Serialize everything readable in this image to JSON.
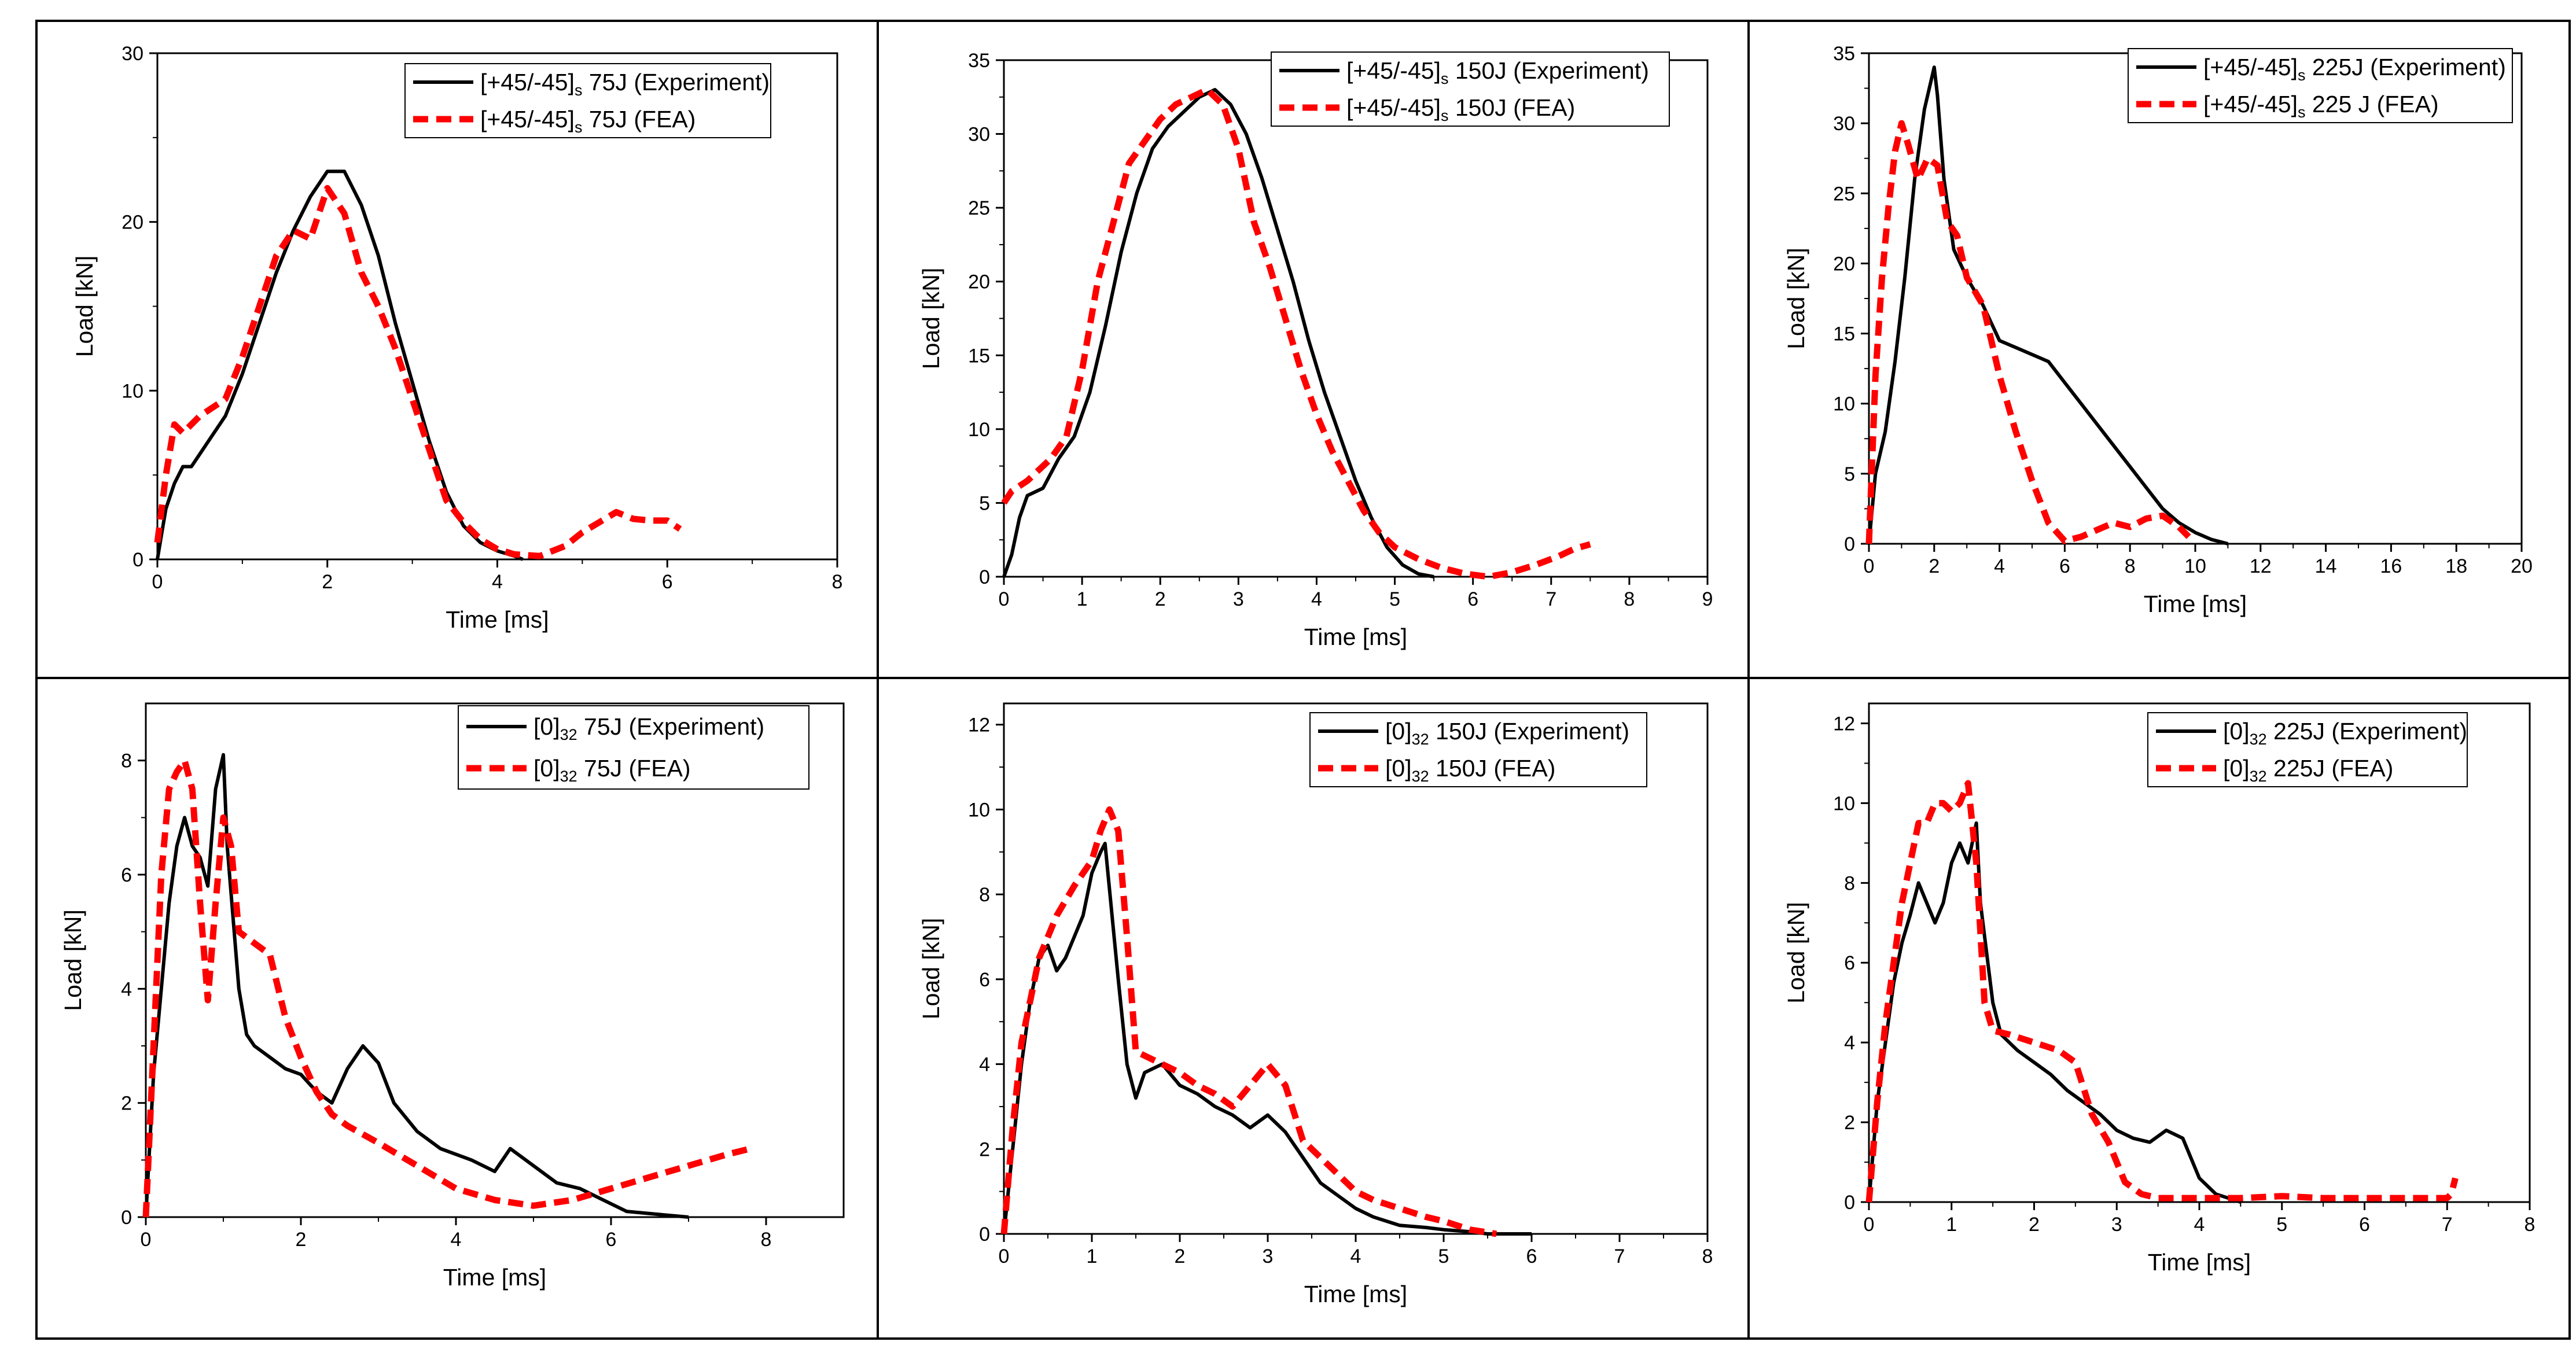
{
  "colors": {
    "experiment": "#000000",
    "fea": "#ff0000",
    "frame": "#000000",
    "background": "#ffffff"
  },
  "chart_data": [
    {
      "type": "line",
      "panel": "top-left",
      "xlabel": "Time [ms]",
      "ylabel": "Load [kN]",
      "xlim": [
        0,
        8
      ],
      "ylim": [
        0,
        30
      ],
      "xticks": [
        0,
        2,
        4,
        6,
        8
      ],
      "yticks": [
        0,
        10,
        20,
        30
      ],
      "legend_position": "top-right",
      "series": [
        {
          "name": "Experiment",
          "legend_main": "[+45/-45]",
          "legend_sub": "s",
          "legend_rest": " 75J (Experiment)",
          "style": "solid",
          "color": "#000000",
          "x": [
            0,
            0.05,
            0.1,
            0.2,
            0.3,
            0.4,
            0.6,
            0.8,
            1.0,
            1.2,
            1.4,
            1.6,
            1.8,
            2.0,
            2.2,
            2.4,
            2.6,
            2.8,
            3.0,
            3.2,
            3.4,
            3.6,
            3.8,
            4.0,
            4.2,
            4.3
          ],
          "y": [
            0,
            1.5,
            3,
            4.5,
            5.5,
            5.5,
            7,
            8.5,
            11,
            14,
            17,
            19.5,
            21.5,
            23,
            23,
            21,
            18,
            14,
            10.5,
            7,
            4,
            2,
            1,
            0.5,
            0.2,
            0
          ]
        },
        {
          "name": "FEA",
          "legend_main": "[+45/-45]",
          "legend_sub": "s",
          "legend_rest": " 75J (FEA)",
          "style": "dashed",
          "color": "#ff0000",
          "x": [
            0,
            0.1,
            0.2,
            0.3,
            0.5,
            0.8,
            1.0,
            1.2,
            1.4,
            1.6,
            1.8,
            2.0,
            2.2,
            2.4,
            2.6,
            2.8,
            3.0,
            3.2,
            3.4,
            3.6,
            3.8,
            4.0,
            4.2,
            4.5,
            4.8,
            5.0,
            5.2,
            5.4,
            5.6,
            5.8,
            6.0,
            6.15
          ],
          "y": [
            1,
            5,
            8,
            7.5,
            8.5,
            9.5,
            12,
            15,
            18,
            19.5,
            19,
            22,
            20.5,
            17,
            15,
            12.5,
            9.5,
            6.5,
            3.5,
            2.2,
            1.2,
            0.6,
            0.3,
            0.2,
            0.8,
            1.6,
            2.2,
            2.8,
            2.4,
            2.3,
            2.3,
            1.8
          ]
        }
      ]
    },
    {
      "type": "line",
      "panel": "top-center",
      "xlabel": "Time [ms]",
      "ylabel": "Load [kN]",
      "xlim": [
        0,
        9
      ],
      "ylim": [
        0,
        35
      ],
      "xticks": [
        0,
        1,
        2,
        3,
        4,
        5,
        6,
        7,
        8,
        9
      ],
      "yticks": [
        0,
        5,
        10,
        15,
        20,
        25,
        30,
        35
      ],
      "legend_position": "top-right",
      "series": [
        {
          "name": "Experiment",
          "legend_main": "[+45/-45]",
          "legend_sub": "s",
          "legend_rest": " 150J (Experiment)",
          "style": "solid",
          "color": "#000000",
          "x": [
            0,
            0.1,
            0.2,
            0.3,
            0.5,
            0.7,
            0.9,
            1.1,
            1.3,
            1.5,
            1.7,
            1.9,
            2.1,
            2.3,
            2.5,
            2.7,
            2.9,
            3.1,
            3.3,
            3.5,
            3.7,
            3.9,
            4.1,
            4.3,
            4.5,
            4.7,
            4.9,
            5.1,
            5.3,
            5.5
          ],
          "y": [
            0,
            1.5,
            4,
            5.5,
            6,
            8,
            9.5,
            12.5,
            17,
            22,
            26,
            29,
            30.5,
            31.5,
            32.5,
            33,
            32,
            30,
            27,
            23.5,
            20,
            16,
            12.5,
            9.5,
            6.5,
            4,
            2,
            0.8,
            0.2,
            0
          ]
        },
        {
          "name": "FEA",
          "legend_main": "[+45/-45]",
          "legend_sub": "s",
          "legend_rest": " 150J (FEA)",
          "style": "dashed",
          "color": "#ff0000",
          "x": [
            0,
            0.1,
            0.3,
            0.6,
            0.8,
            1.0,
            1.2,
            1.4,
            1.6,
            1.8,
            2.0,
            2.2,
            2.4,
            2.6,
            2.8,
            3.0,
            3.2,
            3.4,
            3.6,
            3.8,
            4.0,
            4.2,
            4.4,
            4.6,
            4.8,
            5.0,
            5.3,
            5.6,
            5.9,
            6.2,
            6.5,
            6.8,
            7.1,
            7.3,
            7.5
          ],
          "y": [
            5,
            5.8,
            6.5,
            8,
            9.5,
            14,
            20,
            24,
            28,
            29.5,
            31,
            32,
            32.5,
            33,
            32,
            29,
            24,
            21,
            17.5,
            14,
            11,
            8.5,
            6.5,
            4.5,
            3,
            2,
            1.2,
            0.6,
            0.2,
            0,
            0.3,
            0.8,
            1.4,
            1.9,
            2.2
          ]
        }
      ]
    },
    {
      "type": "line",
      "panel": "top-right",
      "xlabel": "Time [ms]",
      "ylabel": "Load [kN]",
      "xlim": [
        0,
        20
      ],
      "ylim": [
        0,
        35
      ],
      "xticks": [
        0,
        2,
        4,
        6,
        8,
        10,
        12,
        14,
        16,
        18,
        20
      ],
      "yticks": [
        0,
        5,
        10,
        15,
        20,
        25,
        30,
        35
      ],
      "legend_position": "top-right",
      "series": [
        {
          "name": "Experiment",
          "legend_main": "[+45/-45]",
          "legend_sub": "s",
          "legend_rest": " 225J (Experiment)",
          "style": "solid",
          "color": "#000000",
          "x": [
            0,
            0.2,
            0.5,
            0.8,
            1.1,
            1.4,
            1.7,
            2.0,
            2.1,
            2.3,
            2.6,
            3.0,
            3.5,
            4.0,
            4.5,
            5.0,
            5.5,
            6.0,
            6.5,
            7.0,
            7.5,
            8.0,
            8.5,
            9.0,
            9.5,
            10.0,
            10.5,
            11.0
          ],
          "y": [
            0,
            5,
            8,
            13,
            19,
            26,
            31,
            34,
            32,
            26,
            21,
            19,
            17,
            14.5,
            14,
            13.5,
            13,
            11.5,
            10,
            8.5,
            7,
            5.5,
            4,
            2.5,
            1.5,
            0.8,
            0.3,
            0
          ]
        },
        {
          "name": "FEA",
          "legend_main": "[+45/-45]",
          "legend_sub": "s",
          "legend_rest": " 225 J (FEA)",
          "style": "dashed",
          "color": "#ff0000",
          "x": [
            0,
            0.2,
            0.4,
            0.6,
            0.8,
            1.0,
            1.2,
            1.5,
            1.8,
            2.1,
            2.4,
            2.7,
            3.0,
            3.5,
            4.0,
            4.5,
            5.0,
            5.5,
            6.0,
            6.5,
            7.0,
            7.5,
            8.0,
            8.5,
            9.0,
            9.5,
            9.8
          ],
          "y": [
            0,
            12,
            19,
            24,
            28,
            30,
            28.5,
            26,
            27.5,
            27,
            23,
            22,
            19,
            17,
            12,
            8,
            4.5,
            1.5,
            0.2,
            0.5,
            1,
            1.5,
            1.2,
            1.8,
            2,
            1.2,
            0.5
          ]
        }
      ]
    },
    {
      "type": "line",
      "panel": "bottom-left",
      "xlabel": "Time [ms]",
      "ylabel": "Load [kN]",
      "xlim": [
        0,
        9
      ],
      "ylim": [
        0,
        9
      ],
      "xticks": [
        0,
        2,
        4,
        6,
        8
      ],
      "yticks": [
        0,
        2,
        4,
        6,
        8
      ],
      "legend_position": "top-right",
      "series": [
        {
          "name": "Experiment",
          "legend_main": "[0]",
          "legend_sub": "32",
          "legend_rest": " 75J (Experiment)",
          "style": "solid",
          "color": "#000000",
          "x": [
            0,
            0.1,
            0.2,
            0.3,
            0.4,
            0.5,
            0.6,
            0.7,
            0.8,
            0.9,
            1.0,
            1.05,
            1.2,
            1.3,
            1.4,
            1.6,
            1.8,
            2.0,
            2.2,
            2.4,
            2.6,
            2.8,
            3.0,
            3.2,
            3.5,
            3.8,
            4.2,
            4.5,
            4.7,
            5.0,
            5.3,
            5.6,
            5.9,
            6.2,
            6.6,
            7.0
          ],
          "y": [
            0,
            2.5,
            4,
            5.5,
            6.5,
            7,
            6.5,
            6.3,
            5.8,
            7.5,
            8.1,
            6.5,
            4,
            3.2,
            3,
            2.8,
            2.6,
            2.5,
            2.2,
            2.0,
            2.6,
            3.0,
            2.7,
            2.0,
            1.5,
            1.2,
            1.0,
            0.8,
            1.2,
            0.9,
            0.6,
            0.5,
            0.3,
            0.1,
            0.05,
            0
          ]
        },
        {
          "name": "FEA",
          "legend_main": "[0]",
          "legend_sub": "32",
          "legend_rest": " 75J (FEA)",
          "style": "dashed",
          "color": "#ff0000",
          "x": [
            0,
            0.1,
            0.2,
            0.3,
            0.4,
            0.5,
            0.6,
            0.7,
            0.8,
            0.9,
            1.0,
            1.1,
            1.2,
            1.4,
            1.6,
            1.8,
            2.0,
            2.2,
            2.4,
            2.6,
            3.0,
            3.5,
            4.0,
            4.5,
            5.0,
            5.5,
            6.0,
            6.5,
            7.0,
            7.5,
            7.8
          ],
          "y": [
            0,
            3,
            6,
            7.5,
            7.8,
            8,
            7.5,
            5.5,
            3.8,
            5.5,
            7,
            6.5,
            5,
            4.8,
            4.6,
            3.5,
            2.8,
            2.2,
            1.8,
            1.6,
            1.3,
            0.9,
            0.5,
            0.3,
            0.2,
            0.3,
            0.5,
            0.7,
            0.9,
            1.1,
            1.2
          ]
        }
      ]
    },
    {
      "type": "line",
      "panel": "bottom-center",
      "xlabel": "Time [ms]",
      "ylabel": "Load [kN]",
      "xlim": [
        0,
        8
      ],
      "ylim": [
        0,
        12.5
      ],
      "xticks": [
        0,
        1,
        2,
        3,
        4,
        5,
        6,
        7,
        8
      ],
      "yticks": [
        0,
        2,
        4,
        6,
        8,
        10,
        12
      ],
      "legend_position": "top-right",
      "series": [
        {
          "name": "Experiment",
          "legend_main": "[0]",
          "legend_sub": "32",
          "legend_rest": " 150J (Experiment)",
          "style": "solid",
          "color": "#000000",
          "x": [
            0,
            0.05,
            0.1,
            0.2,
            0.3,
            0.4,
            0.5,
            0.6,
            0.7,
            0.8,
            0.9,
            1.0,
            1.1,
            1.15,
            1.3,
            1.4,
            1.5,
            1.6,
            1.8,
            2.0,
            2.2,
            2.4,
            2.6,
            2.8,
            3.0,
            3.2,
            3.4,
            3.6,
            3.8,
            4.0,
            4.2,
            4.5,
            4.8,
            5.0,
            5.3,
            5.5,
            6.0
          ],
          "y": [
            0,
            1,
            2,
            4,
            5.5,
            6.5,
            6.8,
            6.2,
            6.5,
            7,
            7.5,
            8.5,
            9,
            9.2,
            6,
            4,
            3.2,
            3.8,
            4,
            3.5,
            3.3,
            3.0,
            2.8,
            2.5,
            2.8,
            2.4,
            1.8,
            1.2,
            0.9,
            0.6,
            0.4,
            0.2,
            0.15,
            0.1,
            0.05,
            0,
            0
          ]
        },
        {
          "name": "FEA",
          "legend_main": "[0]",
          "legend_sub": "32",
          "legend_rest": " 150J (FEA)",
          "style": "dashed",
          "color": "#ff0000",
          "x": [
            0,
            0.1,
            0.2,
            0.4,
            0.6,
            0.8,
            1.0,
            1.1,
            1.2,
            1.3,
            1.4,
            1.5,
            1.6,
            1.8,
            2.0,
            2.2,
            2.4,
            2.6,
            2.8,
            3.0,
            3.2,
            3.4,
            3.6,
            3.8,
            4.0,
            4.2,
            4.5,
            4.8,
            5.0,
            5.3,
            5.6
          ],
          "y": [
            0,
            2.5,
            4.5,
            6.5,
            7.5,
            8.2,
            8.8,
            9.5,
            10,
            9.5,
            7,
            4.3,
            4.2,
            4.0,
            3.8,
            3.5,
            3.3,
            3.0,
            3.5,
            4.0,
            3.5,
            2.2,
            1.8,
            1.4,
            1.0,
            0.8,
            0.6,
            0.4,
            0.3,
            0.1,
            0
          ]
        }
      ]
    },
    {
      "type": "line",
      "panel": "bottom-right",
      "xlabel": "Time [ms]",
      "ylabel": "Load [kN]",
      "xlim": [
        0,
        8
      ],
      "ylim": [
        0,
        12.5
      ],
      "xticks": [
        0,
        1,
        2,
        3,
        4,
        5,
        6,
        7,
        8
      ],
      "yticks": [
        0,
        2,
        4,
        6,
        8,
        10,
        12
      ],
      "legend_position": "top-right",
      "series": [
        {
          "name": "Experiment",
          "legend_main": "[0]",
          "legend_sub": "32",
          "legend_rest": " 225J (Experiment)",
          "style": "solid",
          "color": "#000000",
          "x": [
            0,
            0.1,
            0.2,
            0.3,
            0.4,
            0.5,
            0.6,
            0.7,
            0.8,
            0.9,
            1.0,
            1.1,
            1.2,
            1.3,
            1.35,
            1.5,
            1.6,
            1.8,
            2.0,
            2.2,
            2.4,
            2.6,
            2.8,
            3.0,
            3.2,
            3.4,
            3.6,
            3.8,
            4.0,
            4.2,
            4.5
          ],
          "y": [
            0,
            2.5,
            4,
            5.5,
            6.5,
            7.2,
            8,
            7.5,
            7,
            7.5,
            8.5,
            9,
            8.5,
            9.5,
            7.5,
            5,
            4.2,
            3.8,
            3.5,
            3.2,
            2.8,
            2.5,
            2.2,
            1.8,
            1.6,
            1.5,
            1.8,
            1.6,
            0.6,
            0.2,
            0
          ]
        },
        {
          "name": "FEA",
          "legend_main": "[0]",
          "legend_sub": "32",
          "legend_rest": " 225J (FEA)",
          "style": "dashed",
          "color": "#ff0000",
          "x": [
            0,
            0.1,
            0.2,
            0.3,
            0.4,
            0.5,
            0.6,
            0.7,
            0.8,
            0.9,
            1.0,
            1.1,
            1.2,
            1.3,
            1.4,
            1.5,
            1.7,
            2.0,
            2.3,
            2.5,
            2.7,
            2.9,
            3.1,
            3.3,
            3.5,
            4.0,
            4.5,
            5.0,
            5.5,
            6.0,
            6.5,
            7.0,
            7.05,
            7.1
          ],
          "y": [
            0,
            2.5,
            4.5,
            6,
            7.5,
            8.5,
            9.5,
            9.5,
            10,
            10,
            9.8,
            10,
            10.5,
            8.5,
            5,
            4.3,
            4.2,
            4.0,
            3.8,
            3.5,
            2.2,
            1.5,
            0.5,
            0.2,
            0.1,
            0.1,
            0.1,
            0.15,
            0.1,
            0.1,
            0.1,
            0.1,
            0.2,
            0.6
          ]
        }
      ]
    }
  ]
}
